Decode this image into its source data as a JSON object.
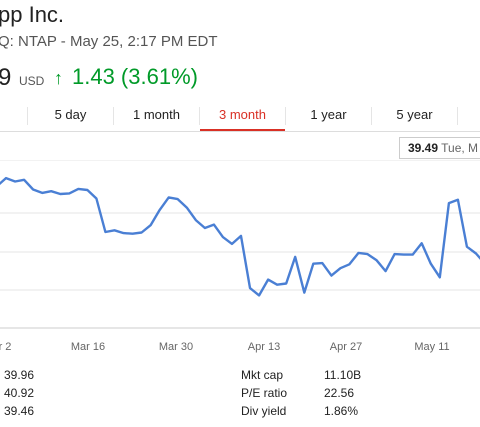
{
  "header": {
    "title": "pp Inc.",
    "subtitle": "Q: NTAP - May 25, 2:17 PM EDT",
    "price": "9",
    "currency": "USD",
    "change": "1.43 (3.61%)",
    "change_color": "#009a28"
  },
  "tabs": [
    {
      "label": "5 day",
      "active": false
    },
    {
      "label": "1 month",
      "active": false
    },
    {
      "label": "3 month",
      "active": true
    },
    {
      "label": "1 year",
      "active": false
    },
    {
      "label": "5 year",
      "active": false
    }
  ],
  "tooltip": {
    "value": "39.49",
    "date": "Tue, M"
  },
  "stats_left": [
    {
      "value": "39.96"
    },
    {
      "value": "40.92"
    },
    {
      "value": "39.46"
    }
  ],
  "stats_right": [
    {
      "label": "Mkt cap",
      "value": "11.10B"
    },
    {
      "label": "P/E ratio",
      "value": "22.56"
    },
    {
      "label": "Div yield",
      "value": "1.86%"
    }
  ],
  "chart_data": {
    "type": "line",
    "x_tick_labels": [
      "r 2",
      "Mar 16",
      "Mar 30",
      "Apr 13",
      "Apr 27",
      "May 11"
    ],
    "values": [
      35.4,
      36.8,
      36.2,
      36.5,
      34.8,
      34.2,
      34.5,
      34.0,
      34.1,
      34.9,
      34.7,
      33.2,
      27.3,
      27.6,
      27.1,
      27.0,
      27.2,
      28.5,
      31.2,
      33.4,
      33.1,
      31.6,
      29.4,
      28.0,
      28.6,
      26.4,
      25.2,
      26.6,
      17.4,
      16.1,
      18.9,
      18.0,
      18.2,
      22.9,
      16.6,
      21.7,
      21.8,
      19.6,
      20.9,
      21.6,
      23.6,
      23.4,
      22.3,
      20.4,
      23.4,
      23.3,
      23.3,
      25.3,
      21.7,
      19.3,
      32.4,
      33.0,
      24.7,
      23.5,
      21.7
    ],
    "line_color": "#4a7fd4",
    "grid": true,
    "ylim": [
      10,
      40
    ]
  }
}
